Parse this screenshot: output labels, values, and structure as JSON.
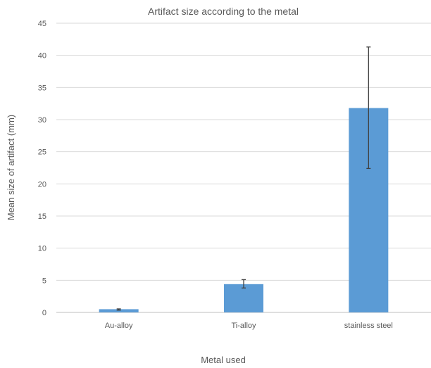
{
  "chart_data": {
    "type": "bar",
    "title": "Artifact size according to the metal",
    "xlabel": "Metal used",
    "ylabel": "Mean size of artifact (mm)",
    "categories": [
      "Au-alloy",
      "Ti-alloy",
      "stainless steel"
    ],
    "values": [
      0.5,
      4.4,
      31.8
    ],
    "error_bars": [
      {
        "low": 0.35,
        "high": 0.55
      },
      {
        "low": 3.8,
        "high": 5.1
      },
      {
        "low": 22.4,
        "high": 41.3
      }
    ],
    "ylim": [
      0,
      45
    ],
    "yticks": [
      0,
      5,
      10,
      15,
      20,
      25,
      30,
      35,
      40,
      45
    ],
    "grid": true,
    "legend": "none",
    "bar_color": "#5b9bd5"
  }
}
